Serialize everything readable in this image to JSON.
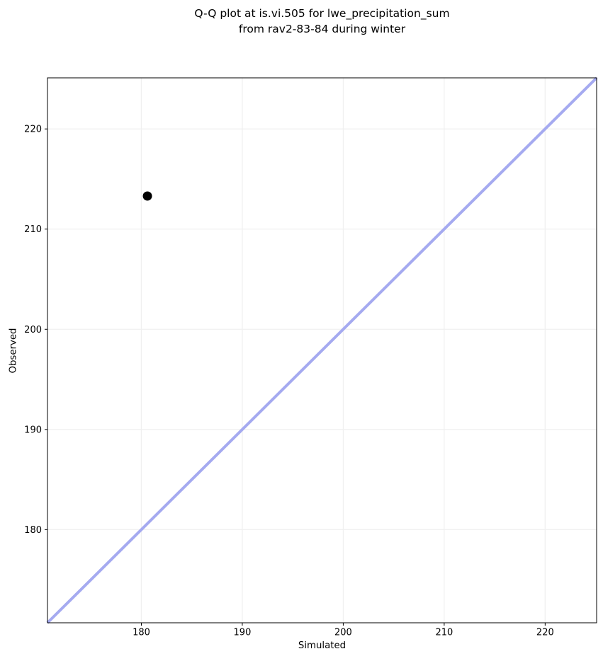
{
  "figure": {
    "title_lines": [
      "Q-Q plot at is.vi.505 for lwe_precipitation_sum",
      "from rav2-83-84 during winter"
    ],
    "xlabel": "Simulated",
    "ylabel": "Observed"
  },
  "chart_data": {
    "type": "scatter",
    "title": "Q-Q plot at is.vi.505 for lwe_precipitation_sum\nfrom rav2-83-84 during winter",
    "xlabel": "Simulated",
    "ylabel": "Observed",
    "xlim": [
      170.7,
      225.1
    ],
    "ylim": [
      170.7,
      225.1
    ],
    "xticks": [
      180,
      190,
      200,
      210,
      220
    ],
    "yticks": [
      180,
      190,
      200,
      210,
      220
    ],
    "grid": true,
    "legend": false,
    "points": [
      {
        "x": 180.6,
        "y": 213.3
      }
    ],
    "reference_line": {
      "type": "identity",
      "x": [
        170.7,
        225.1
      ],
      "y": [
        170.7,
        225.1
      ]
    },
    "colors": {
      "point": "#000000",
      "reference_line": "#a5aaf0",
      "grid": "#f0f0f0",
      "spine": "#000000",
      "text": "#000000",
      "background": "#ffffff"
    },
    "style": {
      "point_radius": 6.5,
      "reference_line_width": 4,
      "grid_line_width": 1.3,
      "spine_width": 1,
      "tick_length": 4,
      "tick_font_size": 13
    }
  }
}
